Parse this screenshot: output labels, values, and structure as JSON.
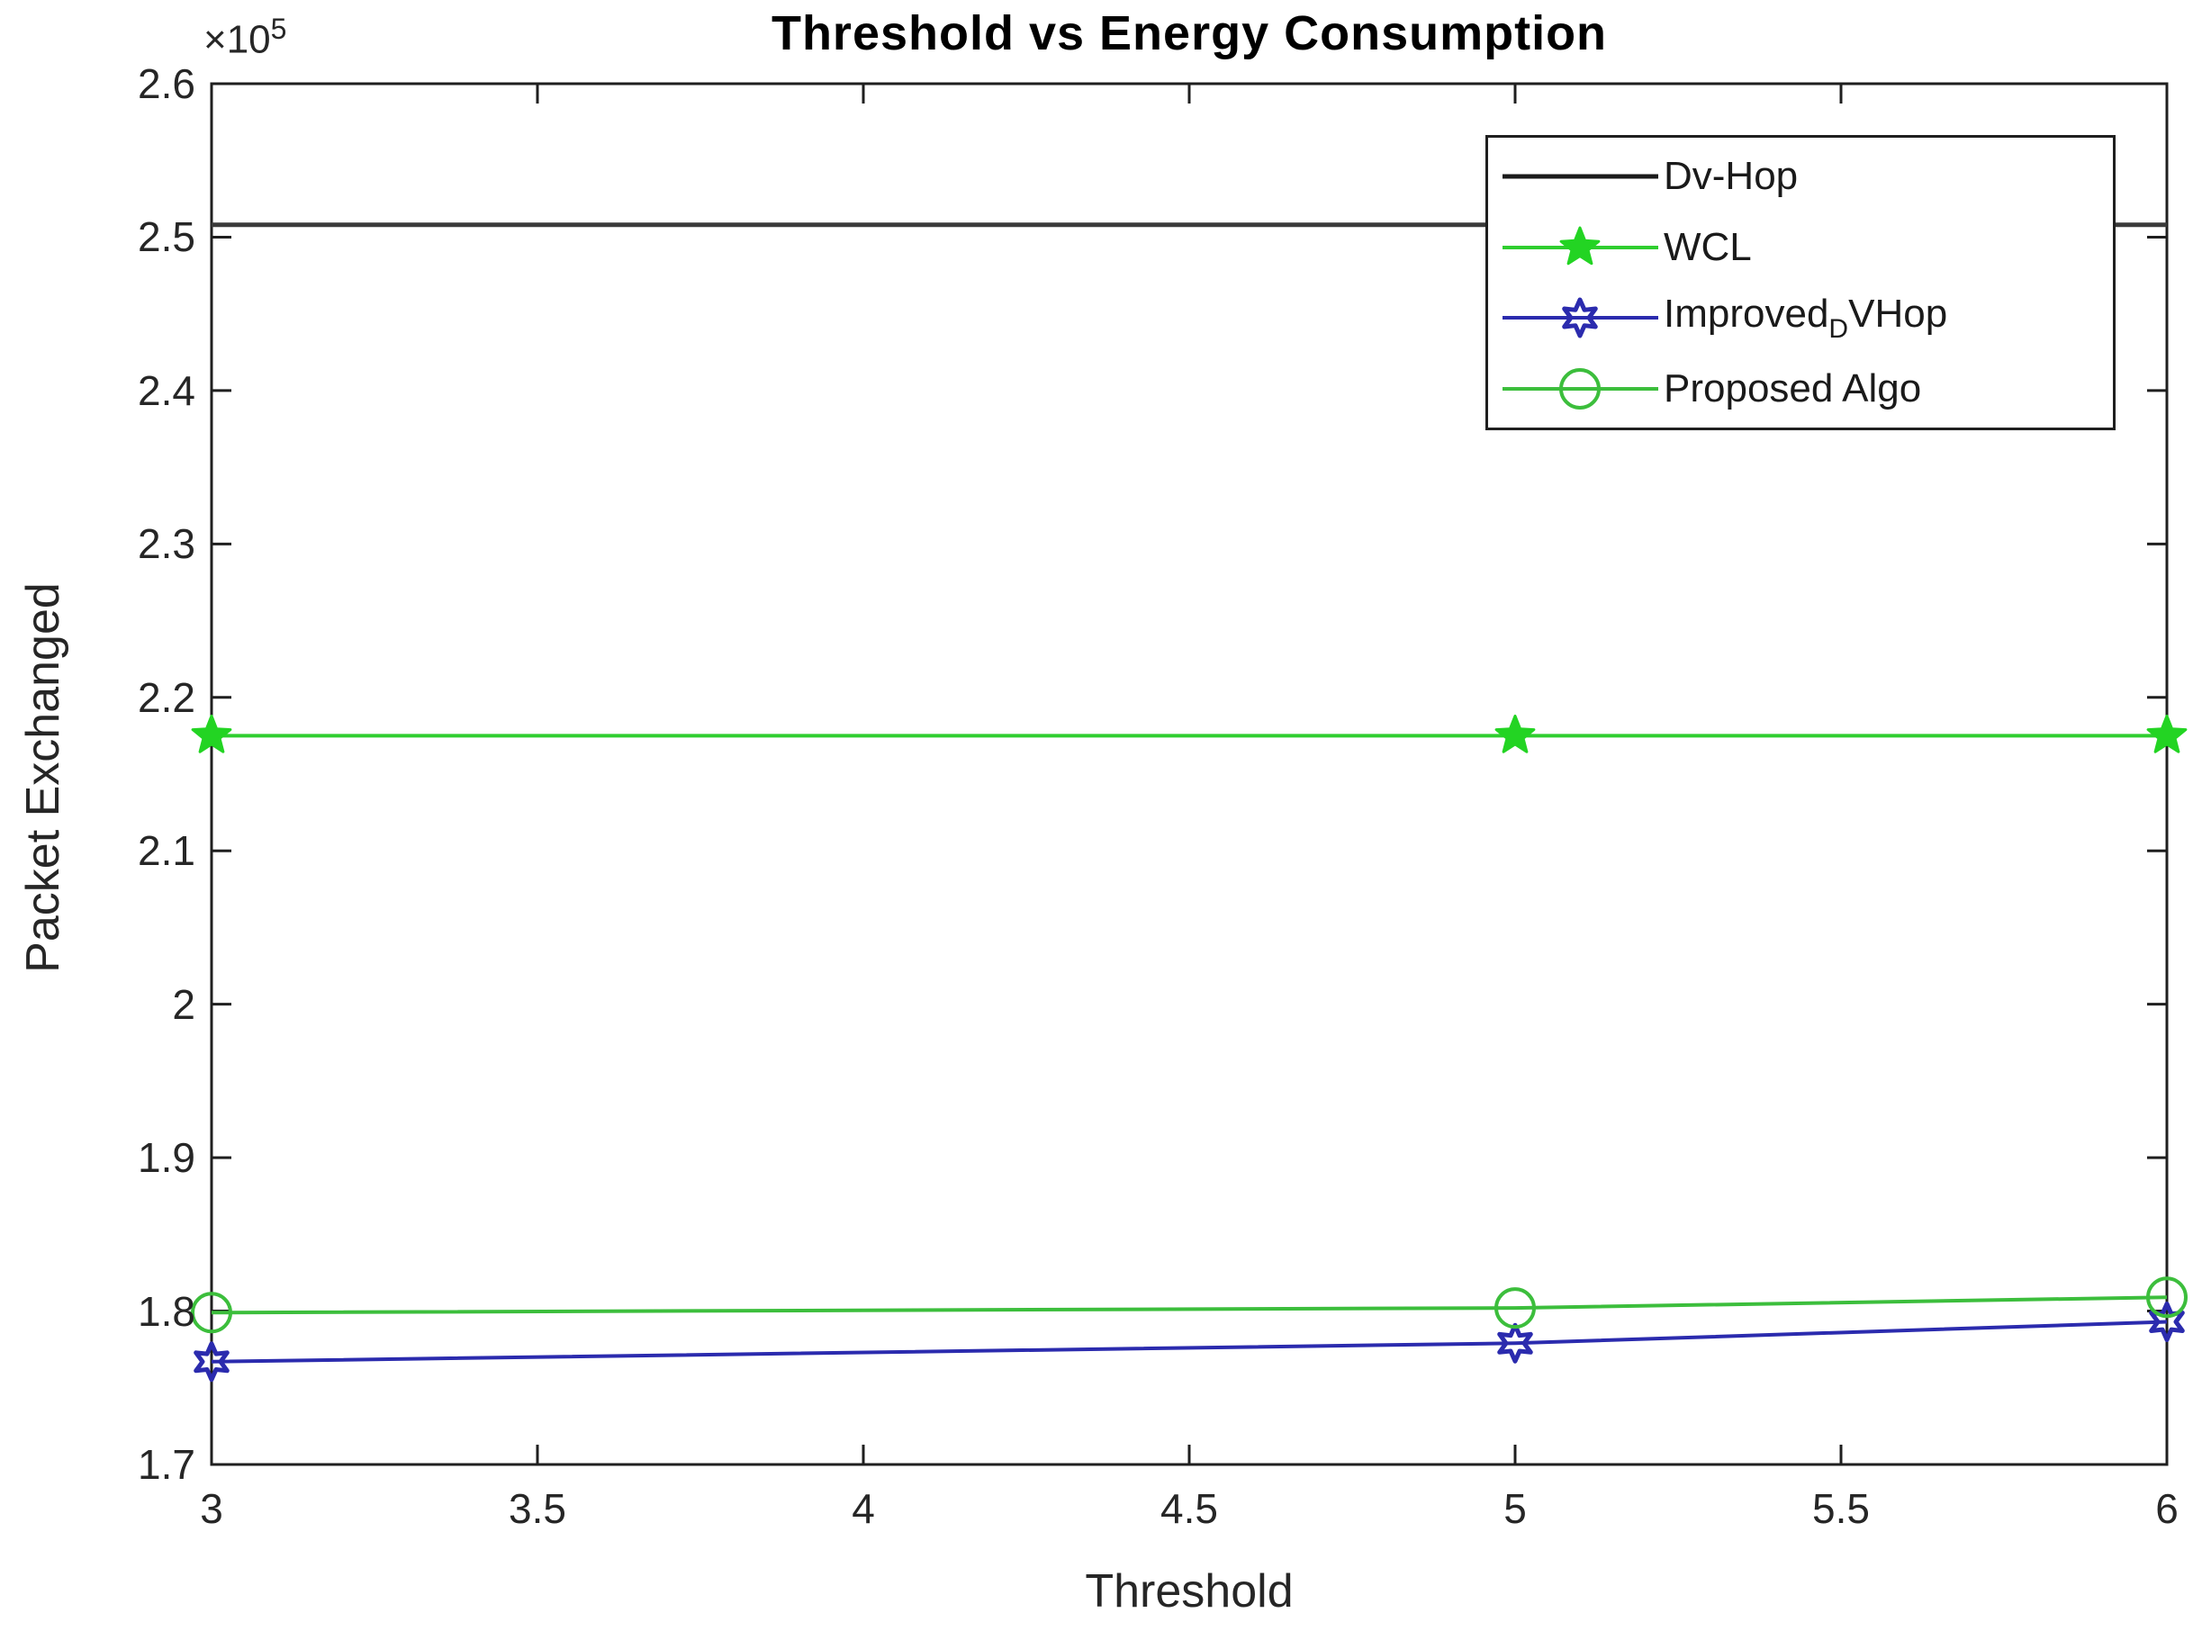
{
  "figure": {
    "title": "Threshold vs Energy Consumption",
    "xlabel": "Threshold",
    "ylabel": "Packet Exchanged",
    "y_exponent_prefix": "×10",
    "y_exponent": "5"
  },
  "chart_data": {
    "type": "line",
    "title": "Threshold vs Energy Consumption",
    "xlabel": "Threshold",
    "ylabel": "Packet Exchanged",
    "y_scale_label": "×10^5",
    "xlim": [
      3,
      6
    ],
    "ylim": [
      170000,
      260000
    ],
    "x_ticks": [
      3,
      3.5,
      4,
      4.5,
      5,
      5.5,
      6
    ],
    "x_tick_labels": [
      "3",
      "3.5",
      "4",
      "4.5",
      "5",
      "5.5",
      "6"
    ],
    "y_ticks": [
      170000,
      180000,
      190000,
      200000,
      210000,
      220000,
      230000,
      240000,
      250000,
      260000
    ],
    "y_tick_labels": [
      "1.7",
      "1.8",
      "1.9",
      "2",
      "2.1",
      "2.2",
      "2.3",
      "2.4",
      "2.5",
      "2.6"
    ],
    "grid": false,
    "legend_position": "upper right",
    "axis_color": "#1f1f1f",
    "series": [
      {
        "name": "Dv-Hop",
        "legend_parts": [
          {
            "t": "Dv-Hop"
          }
        ],
        "color": "#3a3a3a",
        "marker": "none",
        "line_width": 5,
        "x": [
          3,
          6
        ],
        "y": [
          250800,
          250800
        ]
      },
      {
        "name": "WCL",
        "legend_parts": [
          {
            "t": "WCL"
          }
        ],
        "color": "#2fce2f",
        "marker": "pentagram",
        "marker_color": "#23d423",
        "line_width": 4,
        "x": [
          3,
          5,
          6
        ],
        "y": [
          217500,
          217500,
          217500
        ]
      },
      {
        "name": "Improved_DVHop",
        "legend_parts": [
          {
            "t": "Improved"
          },
          {
            "t": "D",
            "sub": true
          },
          {
            "t": "VHop"
          }
        ],
        "color": "#2b2bae",
        "marker": "hexagram",
        "marker_color": "#2b2bae",
        "line_width": 4,
        "x": [
          3,
          5,
          6
        ],
        "y": [
          176700,
          177900,
          179300
        ]
      },
      {
        "name": "Proposed Algo",
        "legend_parts": [
          {
            "t": "Proposed Algo"
          }
        ],
        "color": "#3cbe3c",
        "marker": "circle",
        "marker_color": "#3cbe3c",
        "line_width": 4,
        "x": [
          3,
          5,
          6
        ],
        "y": [
          179900,
          180200,
          180900
        ]
      }
    ]
  }
}
